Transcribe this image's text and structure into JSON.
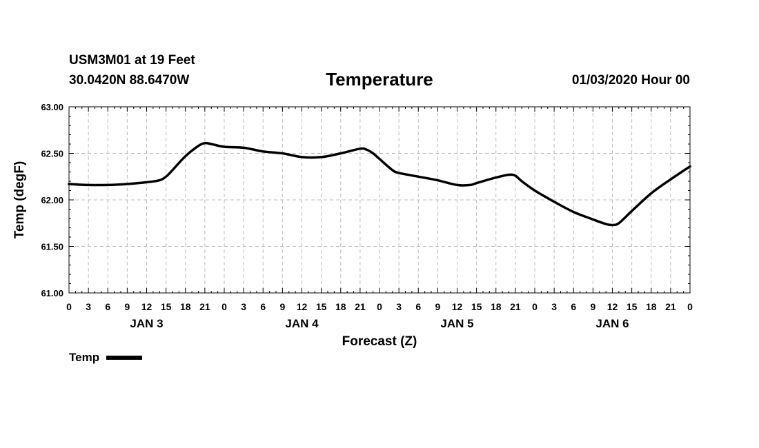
{
  "header": {
    "station": "USM3M01 at 19 Feet",
    "coords": "30.0420N 88.6470W",
    "title": "Temperature",
    "timestamp": "01/03/2020 Hour 00"
  },
  "chart_data": {
    "type": "line",
    "title": "Temperature",
    "xlabel": "Forecast (Z)",
    "ylabel": "Temp (degF)",
    "ylim": [
      61.0,
      63.0
    ],
    "yticks": [
      "61.00",
      "61.50",
      "62.00",
      "62.50",
      "63.00"
    ],
    "xlim_hours": [
      0,
      96
    ],
    "x_tick_labels": [
      "0",
      "3",
      "6",
      "9",
      "12",
      "15",
      "18",
      "21",
      "0",
      "3",
      "6",
      "9",
      "12",
      "15",
      "18",
      "21",
      "0",
      "3",
      "6",
      "9",
      "12",
      "15",
      "18",
      "21",
      "0",
      "3",
      "6",
      "9",
      "12",
      "15",
      "18",
      "21",
      "0"
    ],
    "day_labels": [
      "JAN 3",
      "JAN 4",
      "JAN 5",
      "JAN 6"
    ],
    "grid": true,
    "legend": "bottom-left",
    "series": [
      {
        "name": "Temp",
        "color": "#000000",
        "x": [
          0,
          3,
          6,
          9,
          12,
          14,
          15,
          16,
          18,
          20,
          21,
          22,
          24,
          27,
          30,
          33,
          36,
          39,
          42,
          45,
          46,
          47,
          48,
          50,
          51,
          54,
          57,
          60,
          62,
          63,
          66,
          68,
          69,
          70,
          72,
          75,
          78,
          81,
          83,
          84,
          85,
          87,
          90,
          93,
          96
        ],
        "values": [
          62.17,
          62.16,
          62.16,
          62.17,
          62.19,
          62.21,
          62.25,
          62.32,
          62.47,
          62.58,
          62.61,
          62.6,
          62.57,
          62.56,
          62.52,
          62.5,
          62.46,
          62.46,
          62.5,
          62.55,
          62.54,
          62.5,
          62.44,
          62.32,
          62.29,
          62.25,
          62.21,
          62.16,
          62.16,
          62.18,
          62.24,
          62.27,
          62.26,
          62.2,
          62.1,
          61.98,
          61.87,
          61.79,
          61.74,
          61.73,
          61.75,
          61.88,
          62.07,
          62.22,
          62.36
        ]
      }
    ]
  },
  "legend": {
    "label": "Temp"
  }
}
